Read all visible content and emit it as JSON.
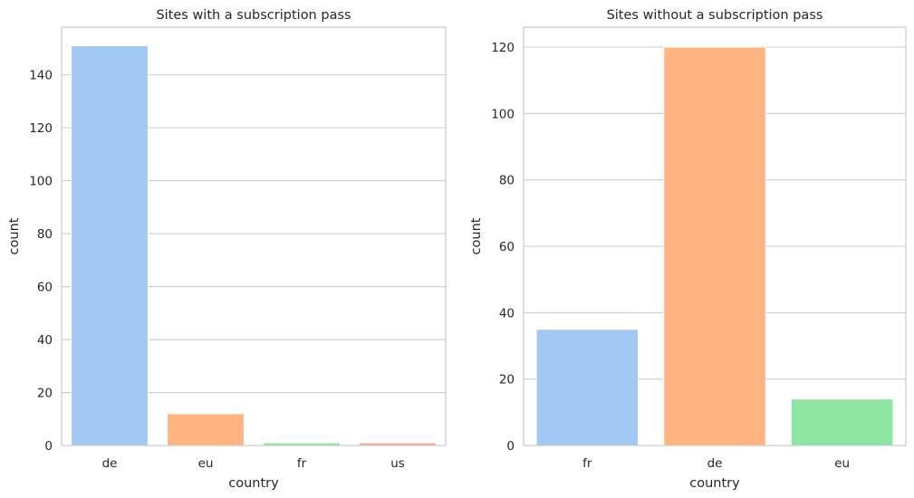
{
  "chart_data": [
    {
      "type": "bar",
      "title": "Sites with a subscription pass",
      "xlabel": "country",
      "ylabel": "count",
      "categories": [
        "de",
        "eu",
        "fr",
        "us"
      ],
      "values": [
        151,
        12,
        1,
        1
      ],
      "colors": [
        "#a1c9f4",
        "#ffb482",
        "#8de5a1",
        "#ff9f9b"
      ],
      "ylim": [
        0,
        158
      ],
      "yticks": [
        0,
        20,
        40,
        60,
        80,
        100,
        120,
        140
      ],
      "grid": "horizontal"
    },
    {
      "type": "bar",
      "title": "Sites without a subscription pass",
      "xlabel": "country",
      "ylabel": "count",
      "categories": [
        "fr",
        "de",
        "eu"
      ],
      "values": [
        35,
        120,
        14
      ],
      "colors": [
        "#a1c9f4",
        "#ffb482",
        "#8de5a1"
      ],
      "ylim": [
        0,
        126
      ],
      "yticks": [
        0,
        20,
        40,
        60,
        80,
        100,
        120
      ],
      "grid": "horizontal"
    }
  ]
}
